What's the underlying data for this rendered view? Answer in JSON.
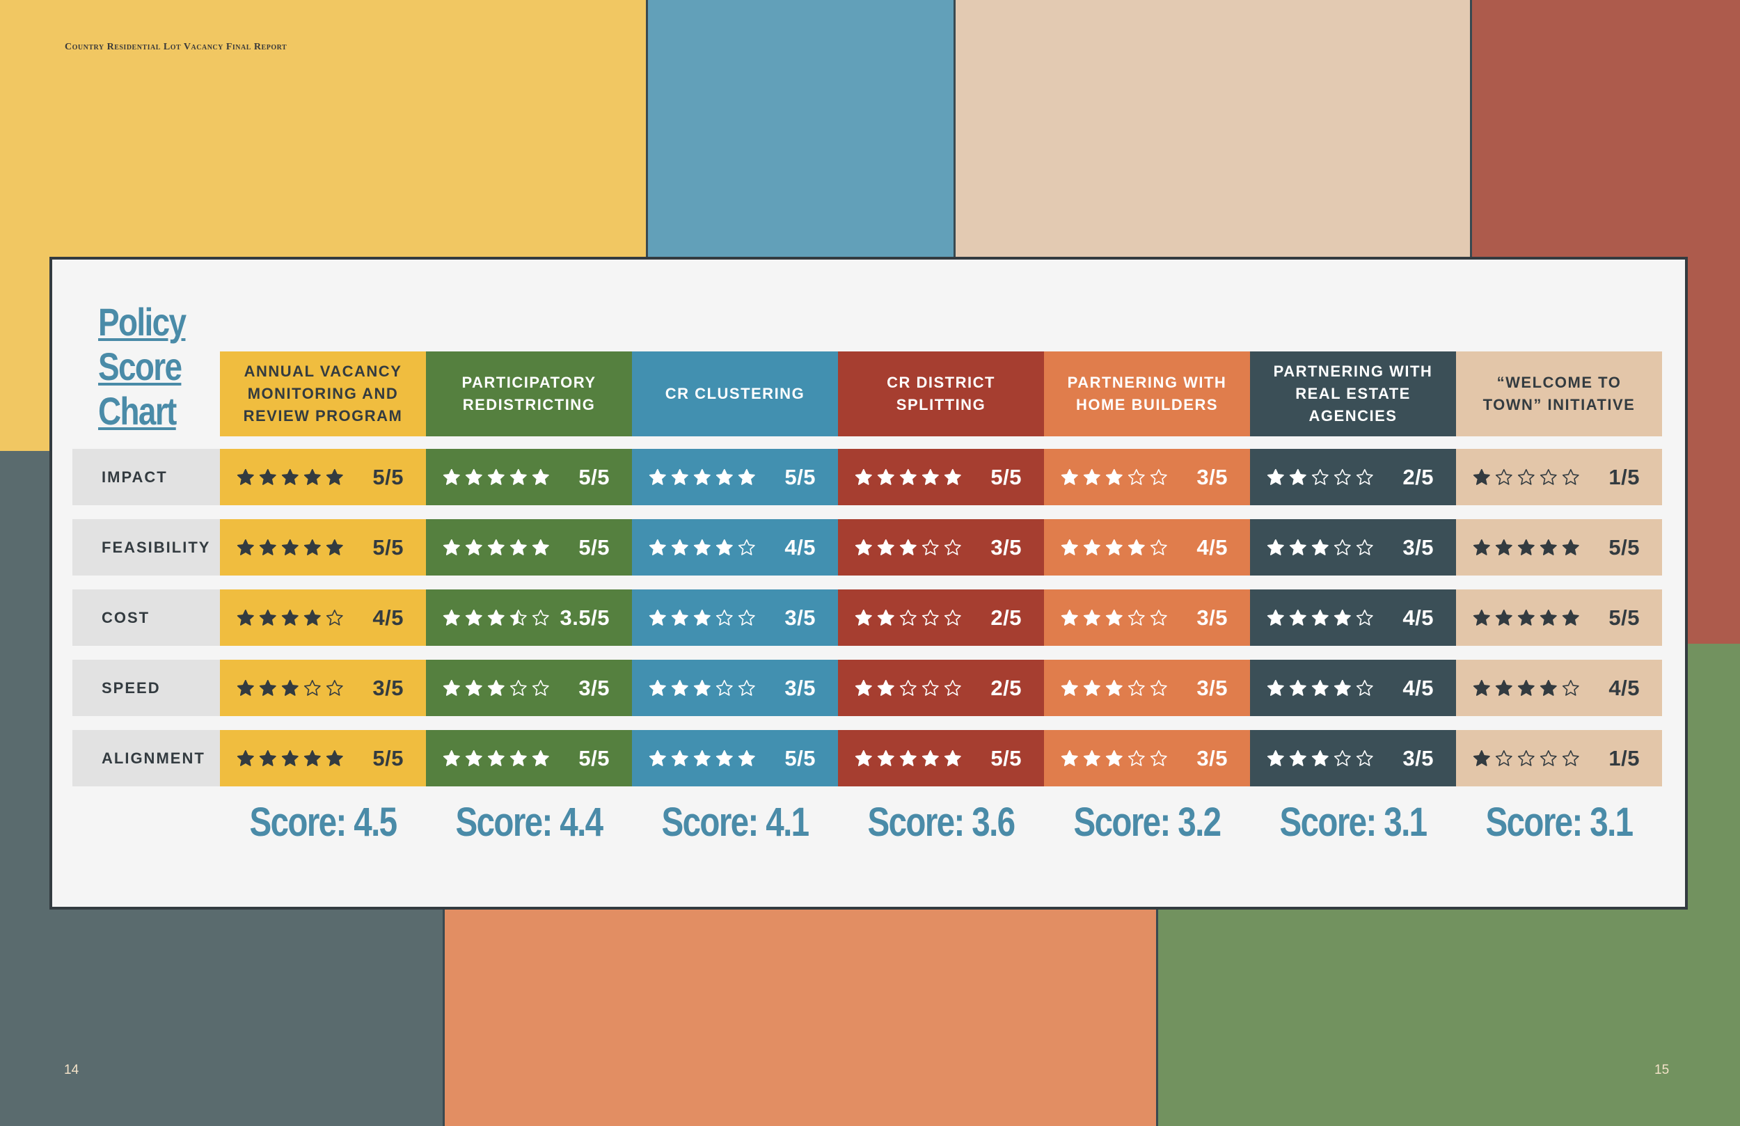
{
  "document": {
    "running_head": "Country Residential Lot Vacancy Final Report",
    "page_left": "14",
    "page_right": "15"
  },
  "chart": {
    "title_lines": [
      "Policy",
      "Score",
      "Chart"
    ]
  },
  "chart_data": {
    "type": "table",
    "title": "Policy Score Chart",
    "rating_scale_max": 5,
    "criteria": [
      "IMPACT",
      "FEASIBILITY",
      "COST",
      "SPEED",
      "ALIGNMENT"
    ],
    "policies": [
      {
        "name": "ANNUAL VACANCY MONITORING AND REVIEW PROGRAM",
        "color": "#f0bd3f",
        "text_color": "#333b40",
        "star_color": "#333b40",
        "ratings": [
          5,
          5,
          4,
          3,
          5
        ],
        "labels": [
          "5/5",
          "5/5",
          "4/5",
          "3/5",
          "5/5"
        ],
        "score": "Score: 4.5"
      },
      {
        "name": "PARTICIPATORY REDISTRICTING",
        "color": "#55803f",
        "text_color": "#ffffff",
        "star_color": "#ffffff",
        "ratings": [
          5,
          5,
          3.5,
          3,
          5
        ],
        "labels": [
          "5/5",
          "5/5",
          "3.5/5",
          "3/5",
          "5/5"
        ],
        "score": "Score: 4.4"
      },
      {
        "name": "CR CLUSTERING",
        "color": "#4290b0",
        "text_color": "#ffffff",
        "star_color": "#ffffff",
        "ratings": [
          5,
          4,
          3,
          3,
          5
        ],
        "labels": [
          "5/5",
          "4/5",
          "3/5",
          "3/5",
          "5/5"
        ],
        "score": "Score: 4.1"
      },
      {
        "name": "CR DISTRICT SPLITTING",
        "color": "#a63e30",
        "text_color": "#ffffff",
        "star_color": "#ffffff",
        "ratings": [
          5,
          3,
          2,
          2,
          5
        ],
        "labels": [
          "5/5",
          "3/5",
          "2/5",
          "2/5",
          "5/5"
        ],
        "score": "Score: 3.6"
      },
      {
        "name": "PARTNERING WITH HOME BUILDERS",
        "color": "#e07d4c",
        "text_color": "#ffffff",
        "star_color": "#ffffff",
        "ratings": [
          3,
          4,
          3,
          3,
          3
        ],
        "labels": [
          "3/5",
          "4/5",
          "3/5",
          "3/5",
          "3/5"
        ],
        "score": "Score: 3.2"
      },
      {
        "name": "PARTNERING WITH REAL ESTATE AGENCIES",
        "color": "#3b4f57",
        "text_color": "#ffffff",
        "star_color": "#ffffff",
        "ratings": [
          2,
          3,
          4,
          4,
          3
        ],
        "labels": [
          "2/5",
          "3/5",
          "4/5",
          "4/5",
          "3/5"
        ],
        "score": "Score: 3.1"
      },
      {
        "name": "“WELCOME TO TOWN” INITIATIVE",
        "color": "#e3c6a9",
        "text_color": "#333b40",
        "star_color": "#333b40",
        "ratings": [
          1,
          5,
          5,
          4,
          1
        ],
        "labels": [
          "1/5",
          "5/5",
          "5/5",
          "4/5",
          "1/5"
        ],
        "score": "Score: 3.1"
      }
    ]
  }
}
